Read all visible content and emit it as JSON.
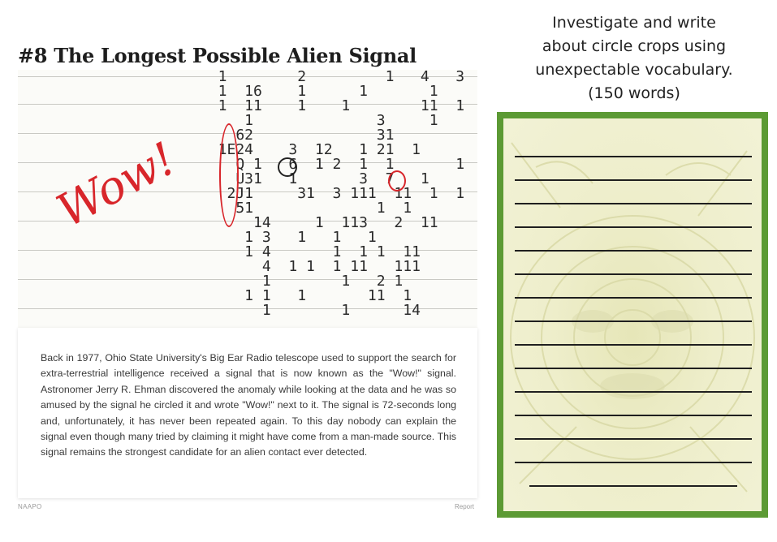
{
  "article": {
    "title": "#8 The Longest Possible Alien Signal",
    "wow_annotation": "Wow!",
    "printout_rows": [
      "  1        2         1   4   3",
      "  1  16    1      1       1",
      "  1  11    1    1        11  1",
      "     1              3     1",
      "    62              31",
      "  1E24    3  12   1 21  1",
      "    Q 1   6  1 2  1  1       1",
      "    U31   1       3  7   1",
      "   2J1     31  3 111  11  1  1",
      "    51              1  1",
      "      14     1  113   2  11",
      "     1 3   1   1   1",
      "     1 4       1  1 1  11",
      "       4  1 1  1 11   111",
      "       1        1   2 1",
      "     1 1   1       11  1",
      "       1        1      14"
    ],
    "caption": "Back in 1977, Ohio State University's Big Ear Radio telescope used to support the search for extra-terrestrial intelligence received a signal that is now known as the \"Wow!\" signal. Astronomer Jerry R. Ehman discovered the anomaly while looking at the data and he was so amused by the signal he circled it and wrote \"Wow!\" next to it. The signal is 72-seconds long and, unfortunately, it has never been repeated again. To this day nobody can explain the signal even though many tried by claiming it might have come from a man-made source. This signal remains the strongest candidate for an alien contact ever detected.",
    "footer_left": "NAAPO",
    "footer_right": "Report"
  },
  "task": {
    "lines": [
      "Investigate and write",
      "about circle crops using",
      "unexpectable vocabulary.",
      "(150 words)"
    ]
  },
  "colors": {
    "frame_green": "#5c9a34",
    "annotation_red": "#d8262b"
  }
}
